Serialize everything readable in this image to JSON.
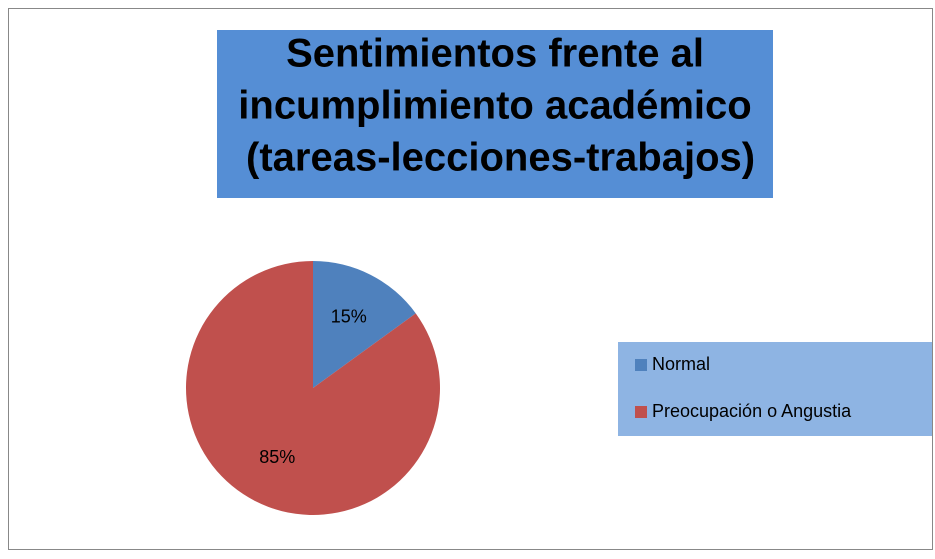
{
  "chart_data": {
    "type": "pie",
    "title": [
      "Sentimientos frente al",
      "incumplimiento académico",
      " (tareas-lecciones-trabajos)"
    ],
    "categories": [
      "Normal",
      "Preocupación o Angustia"
    ],
    "values": [
      15,
      85
    ],
    "value_labels": [
      "15%",
      "85%"
    ],
    "colors": [
      "#4f81bd",
      "#c0504d"
    ],
    "legend": "right"
  }
}
